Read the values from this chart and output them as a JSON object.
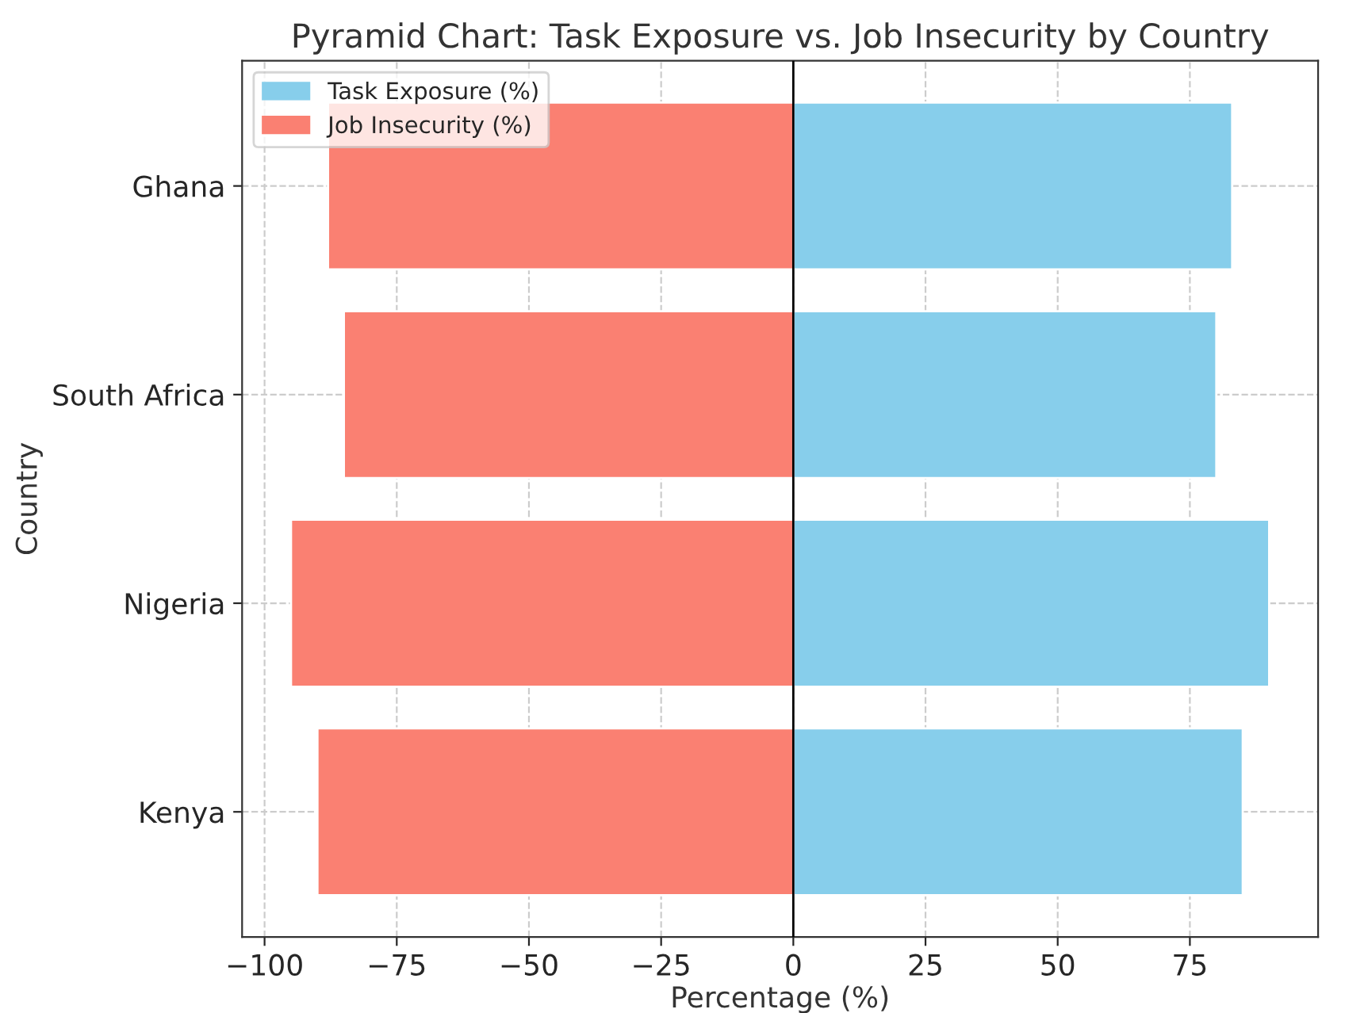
{
  "chart_data": {
    "type": "bar",
    "stacked": true,
    "orientation": "horizontal",
    "title": "Pyramid Chart: Task Exposure vs. Job Insecurity by Country",
    "xlabel": "Percentage (%)",
    "ylabel": "Country",
    "categories": [
      "Ghana",
      "South Africa",
      "Nigeria",
      "Kenya"
    ],
    "series": [
      {
        "name": "Task Exposure (%)",
        "color": "#87ceeb",
        "values": [
          83,
          80,
          90,
          85
        ]
      },
      {
        "name": "Job Insecurity (%)",
        "color": "#fa8072",
        "values": [
          -88,
          -85,
          -95,
          -90
        ]
      }
    ],
    "xlim": [
      -104.25,
      99.25
    ],
    "xticks": [
      {
        "value": -100,
        "label": "−100"
      },
      {
        "value": -75,
        "label": "−75"
      },
      {
        "value": -50,
        "label": "−50"
      },
      {
        "value": -25,
        "label": "−25"
      },
      0,
      25,
      50,
      75
    ],
    "ref_lines": [
      {
        "axis": "x",
        "value": 0,
        "color": "#000000"
      }
    ],
    "grid": true,
    "legend": "top left"
  }
}
